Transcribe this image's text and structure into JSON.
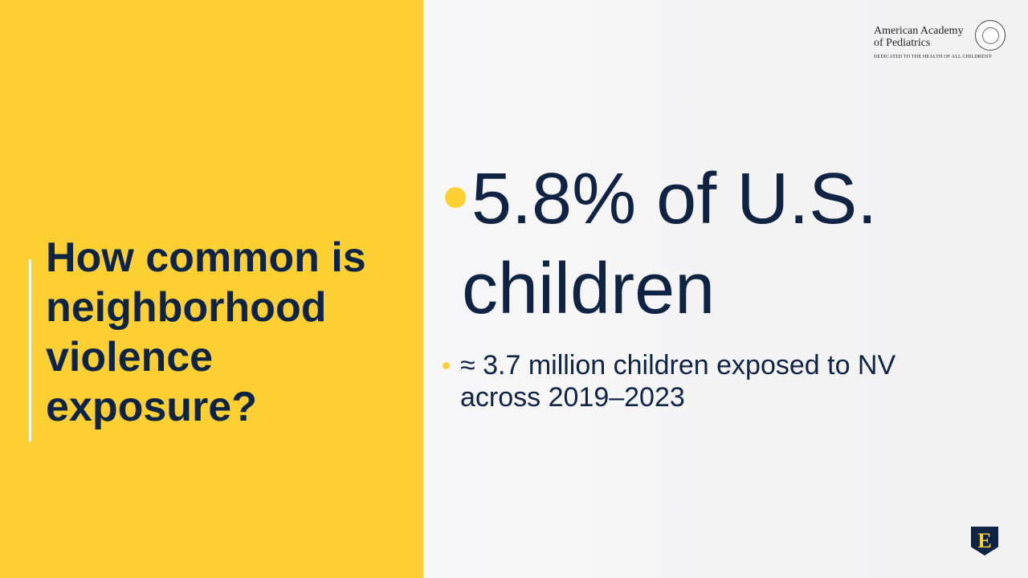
{
  "title": "How common is neighborhood violence exposure?",
  "logo": {
    "name_lines": [
      "American Academy",
      "of Pediatrics"
    ],
    "tagline": "DEDICATED TO THE HEALTH OF ALL CHILDREN®"
  },
  "bullets": [
    {
      "text": "5.8% of U.S. children"
    },
    {
      "text": "≈ 3.7 million children exposed to NV across 2019–2023"
    }
  ],
  "badge": "E"
}
